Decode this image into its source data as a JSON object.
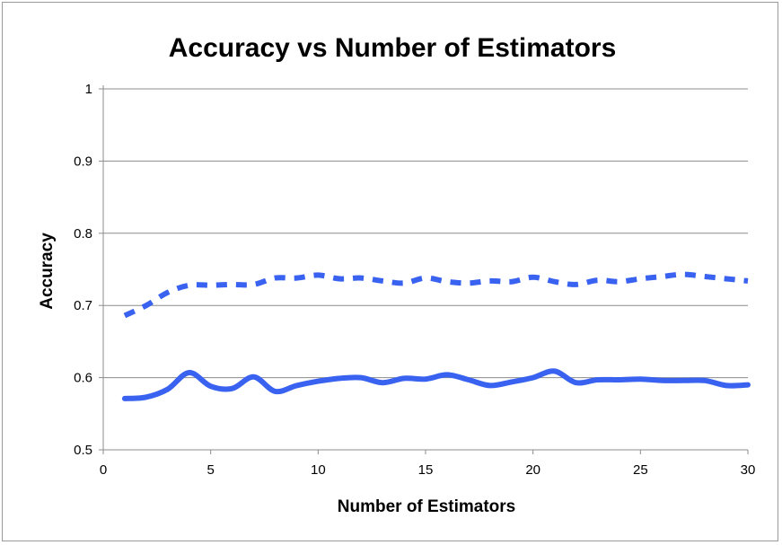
{
  "chart_data": {
    "type": "line",
    "title": "Accuracy vs Number of Estimators",
    "xlabel": "Number of Estimators",
    "ylabel": "Accuracy",
    "xlim": [
      0,
      30
    ],
    "ylim": [
      0.5,
      1
    ],
    "x_ticks": [
      0,
      5,
      10,
      15,
      20,
      25,
      30
    ],
    "y_ticks": [
      0.5,
      0.6,
      0.7,
      0.8,
      0.9,
      1
    ],
    "x_tick_labels": [
      "0",
      "5",
      "10",
      "15",
      "20",
      "25",
      "30"
    ],
    "y_tick_labels": [
      "0.5",
      "0.6",
      "0.7",
      "0.8",
      "0.9",
      "1"
    ],
    "grid": "horizontal",
    "legend": "none",
    "x": [
      1,
      2,
      3,
      4,
      5,
      6,
      7,
      8,
      9,
      10,
      11,
      12,
      13,
      14,
      15,
      16,
      17,
      18,
      19,
      20,
      21,
      22,
      23,
      24,
      25,
      26,
      27,
      28,
      29,
      30
    ],
    "series": [
      {
        "style": "dashed",
        "color": "#3a62f0",
        "values": [
          0.686,
          0.7,
          0.718,
          0.728,
          0.728,
          0.729,
          0.729,
          0.738,
          0.738,
          0.742,
          0.737,
          0.738,
          0.734,
          0.731,
          0.738,
          0.733,
          0.731,
          0.734,
          0.733,
          0.739,
          0.733,
          0.729,
          0.735,
          0.733,
          0.737,
          0.74,
          0.743,
          0.74,
          0.737,
          0.734
        ]
      },
      {
        "style": "solid",
        "color": "#3a62f0",
        "values": [
          0.571,
          0.573,
          0.584,
          0.607,
          0.588,
          0.585,
          0.601,
          0.581,
          0.589,
          0.595,
          0.599,
          0.6,
          0.593,
          0.599,
          0.598,
          0.604,
          0.597,
          0.589,
          0.594,
          0.6,
          0.609,
          0.593,
          0.597,
          0.597,
          0.598,
          0.596,
          0.596,
          0.596,
          0.589,
          0.59
        ]
      }
    ]
  }
}
